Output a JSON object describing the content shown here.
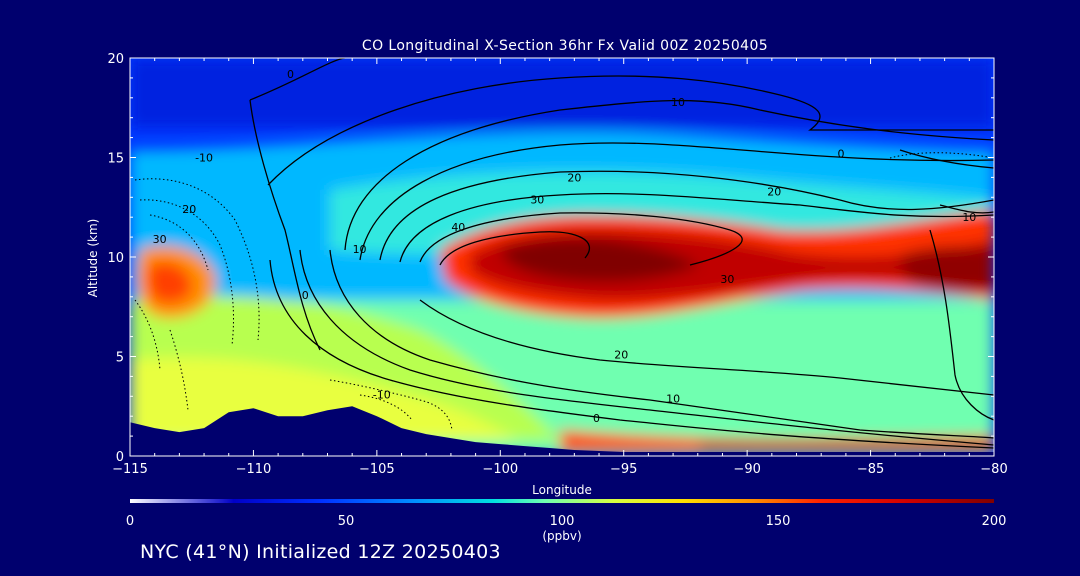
{
  "chart_data": {
    "type": "contour",
    "title": "CO Longitudinal X-Section 36hr  Fx Valid 00Z 20250405",
    "xlabel": "Longitude",
    "ylabel": "Altitude (km)",
    "xlim": [
      -115,
      -80
    ],
    "ylim": [
      0,
      20
    ],
    "xticks": [
      -115,
      -110,
      -105,
      -100,
      -95,
      -90,
      -85,
      -80
    ],
    "yticks": [
      0,
      5,
      10,
      15,
      20
    ],
    "xtick_labels": [
      "−115",
      "−110",
      "−105",
      "−100",
      "−95",
      "−90",
      "−85",
      "−80"
    ],
    "ytick_labels": [
      "0",
      "5",
      "10",
      "15",
      "20"
    ],
    "colorbar": {
      "min": 0,
      "max": 200,
      "ticks": [
        0,
        50,
        100,
        150,
        200
      ],
      "unit_label": "(ppbv)",
      "colors": [
        "#ffffff",
        "#0000c8",
        "#0040ff",
        "#00a0ff",
        "#00e0e0",
        "#80ffb0",
        "#d8ff40",
        "#ffe000",
        "#ff9000",
        "#ff2000",
        "#d00000",
        "#800000"
      ]
    },
    "contour_labels": [
      {
        "x": -108.5,
        "y": 19.0,
        "text": "0"
      },
      {
        "x": -92.8,
        "y": 17.6,
        "text": "10"
      },
      {
        "x": -112.0,
        "y": 14.8,
        "text": "-10"
      },
      {
        "x": -112.6,
        "y": 12.2,
        "text": "20"
      },
      {
        "x": -113.8,
        "y": 10.7,
        "text": "30"
      },
      {
        "x": -101.7,
        "y": 11.3,
        "text": "40"
      },
      {
        "x": -98.5,
        "y": 12.7,
        "text": "30"
      },
      {
        "x": -97.0,
        "y": 13.8,
        "text": "20"
      },
      {
        "x": -88.9,
        "y": 13.1,
        "text": "20"
      },
      {
        "x": -105.7,
        "y": 10.2,
        "text": "10"
      },
      {
        "x": -107.9,
        "y": 7.9,
        "text": "0"
      },
      {
        "x": -86.2,
        "y": 15.0,
        "text": "0"
      },
      {
        "x": -81.0,
        "y": 11.8,
        "text": "10"
      },
      {
        "x": -90.8,
        "y": 8.7,
        "text": "30"
      },
      {
        "x": -95.1,
        "y": 4.9,
        "text": "20"
      },
      {
        "x": -93.0,
        "y": 2.7,
        "text": "10"
      },
      {
        "x": -96.1,
        "y": 1.7,
        "text": "0"
      },
      {
        "x": -104.8,
        "y": 2.9,
        "text": "-10"
      }
    ],
    "terrain": {
      "x": [
        -115,
        -114,
        -113,
        -112,
        -111,
        -110,
        -109,
        -108,
        -107,
        -106,
        -105,
        -104,
        -103,
        -102,
        -101,
        -100,
        -99,
        -98,
        -97,
        -96,
        -95,
        -94,
        -93,
        -92,
        -91,
        -90,
        -89,
        -88,
        -87,
        -86,
        -85,
        -84,
        -83,
        -82,
        -81,
        -80
      ],
      "y": [
        1.7,
        1.4,
        1.2,
        1.4,
        2.2,
        2.4,
        2.0,
        2.0,
        2.3,
        2.5,
        2.0,
        1.4,
        1.1,
        0.9,
        0.7,
        0.6,
        0.5,
        0.4,
        0.3,
        0.25,
        0.2,
        0.2,
        0.2,
        0.2,
        0.2,
        0.2,
        0.2,
        0.2,
        0.2,
        0.2,
        0.2,
        0.2,
        0.2,
        0.2,
        0.2,
        0.2
      ]
    }
  },
  "footer": {
    "text": "NYC (41°N) Initialized 12Z 20250403"
  }
}
